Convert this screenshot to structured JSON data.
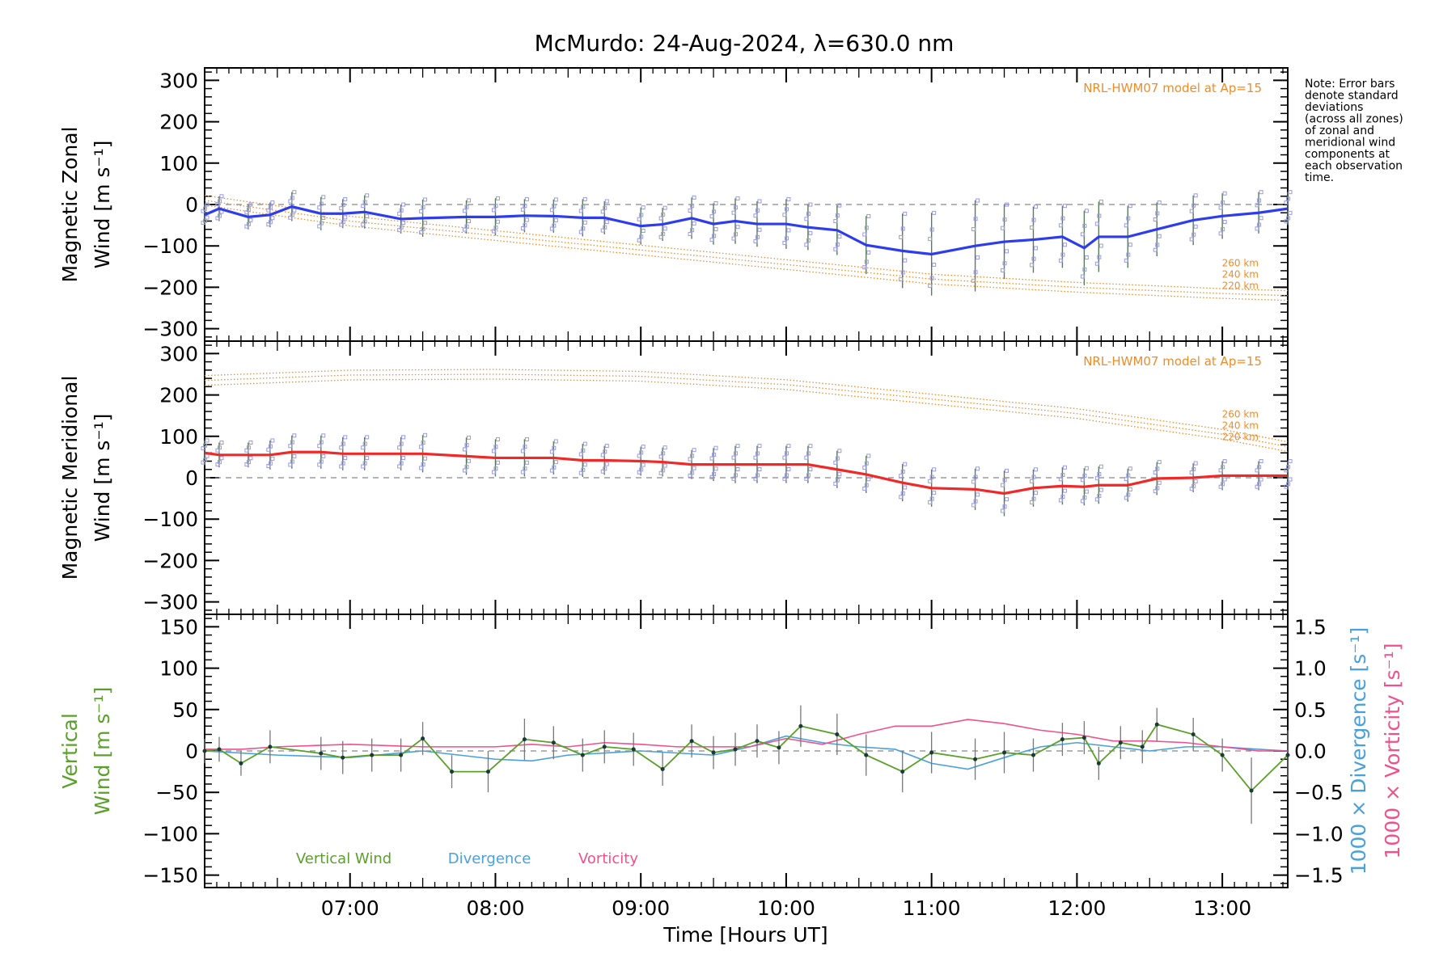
{
  "title": "McMurdo: 24-Aug-2024, λ=630.0 nm",
  "note": [
    "Note: Error bars",
    "denote standard",
    "deviations",
    "(across all zones)",
    "of zonal and",
    "meridional wind",
    "components at",
    "each observation",
    "time."
  ],
  "x_axis": {
    "label": "Time [Hours UT]",
    "ticks": [
      {
        "v": 7,
        "label": "07:00"
      },
      {
        "v": 8,
        "label": "08:00"
      },
      {
        "v": 9,
        "label": "09:00"
      },
      {
        "v": 10,
        "label": "10:00"
      },
      {
        "v": 11,
        "label": "11:00"
      },
      {
        "v": 12,
        "label": "12:00"
      },
      {
        "v": 13,
        "label": "13:00"
      }
    ],
    "range": [
      6.0,
      13.45
    ]
  },
  "colors": {
    "zonal": "#2e3cf0",
    "meridional": "#f02828",
    "vertical": "#5aa02a",
    "divergence": "#4aa0d8",
    "vorticity": "#f0508c",
    "model": "#f08c28",
    "zone_points": "#9a9ae0",
    "zero_line": "#888888"
  },
  "chart_data": [
    {
      "type": "line",
      "panel": "zonal",
      "ylabel": [
        "Magnetic Zonal",
        "Wind [m s⁻¹]"
      ],
      "ylim": [
        -330,
        330
      ],
      "yticks": [
        -300,
        -200,
        -100,
        0,
        100,
        200,
        300
      ],
      "model_label": "NRL-HWM07 model at Ap=15",
      "model_alts": [
        "260 km",
        "240 km",
        "220 km"
      ],
      "model_x": [
        6.0,
        7.0,
        8.0,
        9.0,
        10.0,
        11.0,
        12.0,
        13.0,
        13.45
      ],
      "model_y": [
        10,
        -40,
        -75,
        -110,
        -145,
        -180,
        -200,
        -215,
        -220
      ],
      "series": [
        {
          "x": [
            6.0,
            6.1,
            6.3,
            6.45,
            6.6,
            6.8,
            6.95,
            7.1,
            7.35,
            7.5,
            7.8,
            8.0,
            8.2,
            8.4,
            8.6,
            8.75,
            9.0,
            9.15,
            9.35,
            9.5,
            9.65,
            9.8,
            10.0,
            10.15,
            10.35,
            10.55,
            10.8,
            11.0,
            11.3,
            11.5,
            11.7,
            11.9,
            12.05,
            12.15,
            12.35,
            12.55,
            12.8,
            13.0,
            13.25,
            13.45
          ],
          "y": [
            -25,
            -10,
            -30,
            -25,
            -5,
            -22,
            -22,
            -18,
            -35,
            -33,
            -30,
            -30,
            -27,
            -28,
            -32,
            -32,
            -52,
            -48,
            -33,
            -47,
            -40,
            -47,
            -47,
            -55,
            -62,
            -98,
            -112,
            -120,
            -100,
            -90,
            -85,
            -78,
            -105,
            -78,
            -78,
            -60,
            -38,
            -28,
            -20,
            -10
          ],
          "err": [
            25,
            30,
            30,
            30,
            35,
            40,
            35,
            40,
            35,
            45,
            40,
            45,
            40,
            40,
            45,
            40,
            45,
            40,
            50,
            50,
            55,
            55,
            60,
            55,
            60,
            70,
            90,
            100,
            110,
            90,
            80,
            75,
            90,
            85,
            75,
            65,
            60,
            55,
            50,
            40
          ]
        }
      ]
    },
    {
      "type": "line",
      "panel": "meridional",
      "ylabel": [
        "Magnetic Meridional",
        "Wind [m s⁻¹]"
      ],
      "ylim": [
        -330,
        330
      ],
      "yticks": [
        -300,
        -200,
        -100,
        0,
        100,
        200,
        300
      ],
      "model_label": "NRL-HWM07 model at Ap=15",
      "model_alts": [
        "260 km",
        "240 km",
        "220 km"
      ],
      "model_x": [
        6.0,
        7.0,
        8.0,
        9.0,
        10.0,
        11.0,
        12.0,
        13.0,
        13.45
      ],
      "model_y": [
        235,
        248,
        250,
        245,
        225,
        190,
        155,
        105,
        75
      ],
      "series": [
        {
          "x": [
            6.0,
            6.1,
            6.3,
            6.45,
            6.6,
            6.8,
            6.95,
            7.1,
            7.35,
            7.5,
            7.8,
            8.0,
            8.2,
            8.4,
            8.6,
            8.75,
            9.0,
            9.15,
            9.35,
            9.5,
            9.65,
            9.8,
            10.0,
            10.15,
            10.35,
            10.55,
            10.8,
            11.0,
            11.3,
            11.5,
            11.7,
            11.9,
            12.05,
            12.15,
            12.35,
            12.55,
            12.8,
            13.0,
            13.25,
            13.45
          ],
          "y": [
            60,
            55,
            55,
            55,
            62,
            62,
            58,
            58,
            58,
            58,
            52,
            48,
            48,
            48,
            42,
            42,
            40,
            38,
            32,
            32,
            32,
            32,
            32,
            32,
            20,
            8,
            -12,
            -25,
            -28,
            -38,
            -25,
            -20,
            -22,
            -18,
            -18,
            -2,
            0,
            5,
            5,
            5
          ],
          "err": [
            30,
            30,
            30,
            35,
            40,
            40,
            40,
            40,
            40,
            45,
            45,
            45,
            45,
            40,
            40,
            35,
            35,
            35,
            35,
            40,
            45,
            45,
            45,
            45,
            45,
            45,
            45,
            45,
            50,
            55,
            45,
            45,
            45,
            45,
            40,
            40,
            35,
            35,
            35,
            35
          ]
        }
      ]
    },
    {
      "type": "line",
      "panel": "vertical",
      "ylabel": [
        "Vertical",
        "Wind [m s⁻¹]"
      ],
      "ylim": [
        -165,
        165
      ],
      "yticks": [
        -150,
        -100,
        -50,
        0,
        50,
        100,
        150
      ],
      "ylabel_right_1": "1000 × Divergence [s⁻¹]",
      "ylabel_right_2": "1000 × Vorticity [s⁻¹]",
      "yticks_right": [
        {
          "v": -1.5,
          "label": "−1.5"
        },
        {
          "v": -1.0,
          "label": "−1.0"
        },
        {
          "v": -0.5,
          "label": "−0.5"
        },
        {
          "v": 0.0,
          "label": "0.0"
        },
        {
          "v": 0.5,
          "label": "0.5"
        },
        {
          "v": 1.0,
          "label": "1.0"
        },
        {
          "v": 1.5,
          "label": "1.5"
        }
      ],
      "ylim_right": [
        -1.65,
        1.65
      ],
      "legend": [
        "Vertical Wind",
        "Divergence",
        "Vorticity"
      ],
      "series": [
        {
          "name": "Vertical Wind",
          "x": [
            6.0,
            6.1,
            6.25,
            6.45,
            6.8,
            6.95,
            7.15,
            7.35,
            7.5,
            7.7,
            7.95,
            8.2,
            8.4,
            8.6,
            8.75,
            8.95,
            9.15,
            9.35,
            9.5,
            9.65,
            9.8,
            9.95,
            10.1,
            10.35,
            10.55,
            10.8,
            11.0,
            11.3,
            11.5,
            11.7,
            11.9,
            12.05,
            12.15,
            12.3,
            12.45,
            12.55,
            12.8,
            13.0,
            13.2,
            13.45
          ],
          "y": [
            0,
            2,
            -15,
            5,
            -3,
            -8,
            -5,
            -5,
            15,
            -25,
            -25,
            14,
            10,
            -5,
            5,
            2,
            -22,
            12,
            -2,
            2,
            12,
            4,
            30,
            20,
            -5,
            -25,
            -2,
            -10,
            -2,
            -5,
            14,
            16,
            -15,
            10,
            5,
            32,
            20,
            -5,
            -48,
            -5
          ],
          "err": [
            15,
            15,
            15,
            20,
            20,
            20,
            20,
            20,
            20,
            20,
            25,
            25,
            20,
            20,
            20,
            20,
            20,
            20,
            20,
            20,
            20,
            20,
            25,
            25,
            25,
            25,
            25,
            25,
            25,
            20,
            20,
            20,
            20,
            20,
            20,
            20,
            20,
            20,
            40,
            30
          ]
        },
        {
          "name": "Divergence",
          "x": [
            6.0,
            6.5,
            7.0,
            7.5,
            8.0,
            8.25,
            8.5,
            9.0,
            9.5,
            9.75,
            10.0,
            10.25,
            10.5,
            10.75,
            11.0,
            11.25,
            11.5,
            11.75,
            12.0,
            12.25,
            12.5,
            12.75,
            13.0,
            13.25,
            13.45
          ],
          "y": [
            0.0,
            -0.05,
            -0.08,
            0.0,
            -0.1,
            -0.12,
            -0.05,
            0.0,
            -0.05,
            0.05,
            0.18,
            0.1,
            0.05,
            0.02,
            -0.15,
            -0.22,
            -0.08,
            0.05,
            0.1,
            0.05,
            0.0,
            0.05,
            0.05,
            0.02,
            0.0
          ]
        },
        {
          "name": "Vorticity",
          "x": [
            6.0,
            6.25,
            6.5,
            7.0,
            7.5,
            8.0,
            8.25,
            8.5,
            8.75,
            9.0,
            9.25,
            9.5,
            9.75,
            10.0,
            10.25,
            10.5,
            10.75,
            11.0,
            11.25,
            11.5,
            11.75,
            12.0,
            12.25,
            12.5,
            12.75,
            13.0,
            13.25,
            13.45
          ],
          "y": [
            0.02,
            0.02,
            0.05,
            0.08,
            0.05,
            0.05,
            0.08,
            0.05,
            0.1,
            0.08,
            0.05,
            0.05,
            0.05,
            0.15,
            0.08,
            0.2,
            0.3,
            0.3,
            0.38,
            0.33,
            0.25,
            0.2,
            0.12,
            0.12,
            0.1,
            0.05,
            0.0,
            0.0
          ]
        }
      ]
    }
  ]
}
